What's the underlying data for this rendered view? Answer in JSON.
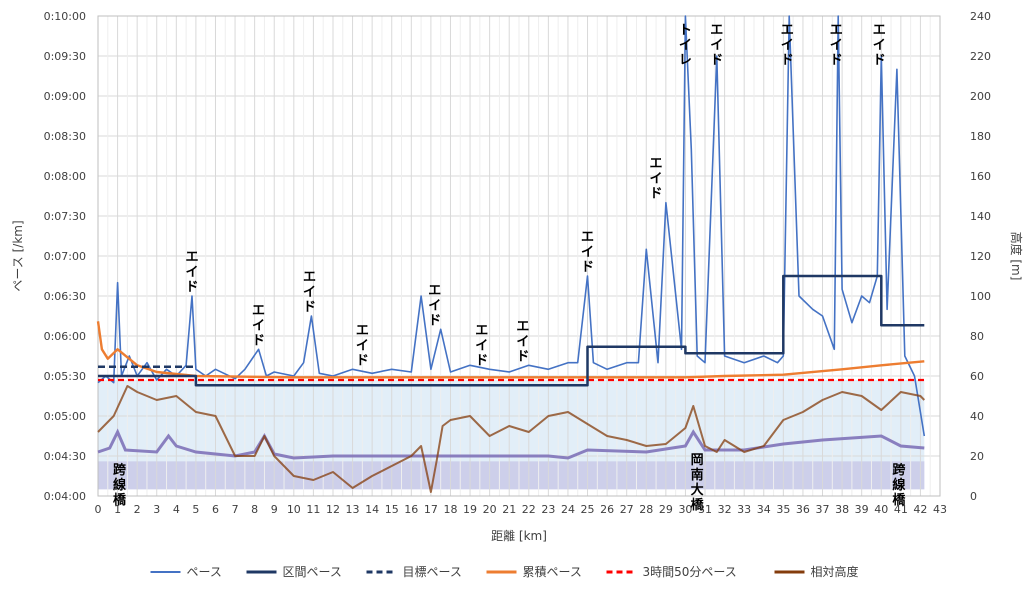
{
  "chart_data": {
    "type": "line",
    "xlabel": "距離 [km]",
    "ylabel_left": "ペース [/km]",
    "ylabel_right": "高度 [m]",
    "x_ticks": [
      0,
      1,
      2,
      3,
      4,
      5,
      6,
      7,
      8,
      9,
      10,
      11,
      12,
      13,
      14,
      15,
      16,
      17,
      18,
      19,
      20,
      21,
      22,
      23,
      24,
      25,
      26,
      27,
      28,
      29,
      30,
      31,
      32,
      33,
      34,
      35,
      36,
      37,
      38,
      39,
      40,
      41,
      42,
      43
    ],
    "y_left_ticks": [
      "0:04:00",
      "0:04:30",
      "0:05:00",
      "0:05:30",
      "0:06:00",
      "0:06:30",
      "0:07:00",
      "0:07:30",
      "0:08:00",
      "0:08:30",
      "0:09:00",
      "0:09:30",
      "0:10:00"
    ],
    "y_right_ticks": [
      0,
      20,
      40,
      60,
      80,
      100,
      120,
      140,
      160,
      180,
      200,
      220,
      240
    ],
    "xlim": [
      0,
      43
    ],
    "ylim_left_seconds": [
      240,
      600
    ],
    "ylim_right": [
      0,
      240
    ],
    "grid": true,
    "legend_position": "bottom",
    "colors": {
      "pace": "#4472C4",
      "section_pace": "#1F3864",
      "target_pace": "#1F3864",
      "cumulative_pace": "#ED7D31",
      "pace_350": "#FF0000",
      "relative_altitude": "#843C0C",
      "band_light": "#DDEBF7",
      "band_purple": "#C9C9E8",
      "altitude_purple": "#7F72B8"
    },
    "series": [
      {
        "name": "ペース",
        "x": [
          0,
          0.4,
          0.8,
          1.0,
          1.2,
          1.6,
          2.0,
          2.5,
          3.0,
          3.5,
          4.0,
          4.5,
          4.8,
          5.0,
          5.5,
          6.0,
          7.0,
          7.5,
          8.2,
          8.6,
          9.0,
          10.0,
          10.5,
          10.9,
          11.3,
          12.0,
          13.0,
          14.0,
          15.0,
          16.0,
          16.5,
          17.0,
          17.5,
          18.0,
          19.0,
          20.0,
          21.0,
          22.0,
          23.0,
          24.0,
          24.5,
          25.0,
          25.3,
          26.0,
          27.0,
          27.6,
          28.0,
          28.6,
          29.0,
          29.8,
          30.0,
          30.3,
          30.6,
          31.0,
          31.6,
          32.0,
          33.0,
          34.0,
          34.7,
          35.0,
          35.3,
          35.8,
          36.5,
          37.0,
          37.6,
          37.8,
          38.0,
          38.5,
          39.0,
          39.4,
          39.8,
          40.0,
          40.3,
          40.8,
          41.2,
          41.7,
          42.2
        ],
        "values": [
          325,
          330,
          325,
          400,
          330,
          345,
          330,
          340,
          327,
          335,
          330,
          338,
          390,
          335,
          330,
          335,
          328,
          335,
          350,
          330,
          333,
          330,
          340,
          375,
          332,
          330,
          335,
          332,
          335,
          333,
          390,
          335,
          365,
          333,
          338,
          335,
          333,
          338,
          335,
          340,
          340,
          405,
          340,
          335,
          340,
          340,
          425,
          340,
          460,
          350,
          600,
          500,
          345,
          340,
          570,
          345,
          340,
          345,
          340,
          345,
          600,
          390,
          380,
          375,
          350,
          600,
          395,
          370,
          390,
          385,
          405,
          570,
          380,
          560,
          345,
          330,
          285
        ]
      },
      {
        "name": "区間ペース",
        "x": [
          0,
          5.0,
          5.0,
          25.0,
          25.0,
          30.0,
          30.0,
          35.0,
          35.0,
          40.0,
          40.0,
          42.2
        ],
        "values": [
          330,
          330,
          323,
          323,
          352,
          352,
          347,
          347,
          405,
          405,
          368,
          368
        ]
      },
      {
        "name": "目標ペース",
        "x": [
          0,
          5.0
        ],
        "values": [
          337,
          337
        ]
      },
      {
        "name": "累積ペース",
        "x": [
          0,
          0.2,
          0.5,
          1.0,
          2.0,
          3.0,
          5.0,
          10.0,
          15.0,
          20.0,
          25.0,
          30.0,
          32.0,
          35.0,
          38.0,
          40.0,
          42.2
        ],
        "values": [
          371,
          350,
          343,
          350,
          338,
          333,
          330,
          329,
          329,
          329,
          329,
          329,
          330,
          331,
          335,
          338,
          341
        ]
      },
      {
        "name": "3時間50分ペース",
        "x": [
          0,
          42.2
        ],
        "values": [
          327,
          327
        ]
      },
      {
        "name": "相対高度",
        "x": [
          0,
          0.8,
          1.5,
          2.0,
          3.0,
          4.0,
          5.0,
          6.0,
          7.0,
          8.0,
          8.5,
          9.0,
          10.0,
          11.0,
          12.0,
          13.0,
          14.0,
          15.0,
          16.0,
          16.5,
          17.0,
          17.3,
          17.6,
          18.0,
          19.0,
          20.0,
          21.0,
          22.0,
          23.0,
          24.0,
          25.0,
          26.0,
          27.0,
          28.0,
          29.0,
          30.0,
          30.4,
          31.0,
          31.6,
          32.0,
          33.0,
          34.0,
          35.0,
          36.0,
          37.0,
          38.0,
          39.0,
          40.0,
          41.0,
          42.0,
          42.2
        ],
        "values": [
          32,
          40,
          55,
          52,
          48,
          50,
          42,
          40,
          20,
          20,
          30,
          20,
          10,
          8,
          12,
          4,
          10,
          15,
          20,
          25,
          2,
          18,
          35,
          38,
          40,
          30,
          35,
          32,
          40,
          42,
          36,
          30,
          28,
          25,
          26,
          34,
          45,
          25,
          22,
          28,
          22,
          25,
          38,
          42,
          48,
          52,
          50,
          43,
          52,
          50,
          48
        ]
      }
    ],
    "altitude_purple_line": {
      "x": [
        0,
        0.6,
        1.0,
        1.4,
        3.0,
        3.6,
        4.0,
        5.0,
        7.0,
        8.0,
        8.5,
        9.0,
        10.0,
        12.0,
        15.0,
        17.0,
        20.0,
        23.0,
        24.0,
        25.0,
        28.0,
        30.0,
        30.4,
        31.0,
        33.0,
        35.0,
        37.0,
        40.0,
        41.0,
        42.2
      ],
      "values": [
        22,
        24,
        32,
        23,
        22,
        30,
        25,
        22,
        20,
        22,
        30,
        21,
        19,
        20,
        20,
        20,
        20,
        20,
        19,
        23,
        22,
        25,
        32,
        23,
        23,
        26,
        28,
        30,
        25,
        24
      ]
    },
    "bands": [
      {
        "from_pace_seconds": 245,
        "to_pace_seconds": 327,
        "color": "light-blue"
      },
      {
        "from_pace_seconds": 245,
        "to_pace_seconds": 266,
        "color": "lavender"
      }
    ],
    "annotations": [
      {
        "text": "エイド",
        "x": 4.8
      },
      {
        "text": "エイド",
        "x": 8.2
      },
      {
        "text": "エイド",
        "x": 10.8
      },
      {
        "text": "エイド",
        "x": 13.5
      },
      {
        "text": "エイド",
        "x": 17.2
      },
      {
        "text": "エイド",
        "x": 19.6
      },
      {
        "text": "エイド",
        "x": 21.7
      },
      {
        "text": "エイド",
        "x": 25.0
      },
      {
        "text": "エイド",
        "x": 28.5
      },
      {
        "text": "トイレ",
        "x": 30.0
      },
      {
        "text": "エイド",
        "x": 31.6
      },
      {
        "text": "エイド",
        "x": 35.2
      },
      {
        "text": "エイド",
        "x": 37.7
      },
      {
        "text": "エイド",
        "x": 39.9
      },
      {
        "text": "跨線橋",
        "x": 1.1
      },
      {
        "text": "岡南大橋",
        "x": 30.6
      },
      {
        "text": "跨線橋",
        "x": 40.9
      },
      {
        "text": "岡南大橋",
        "x": 30.6
      }
    ],
    "legend": [
      "ペース",
      "区間ペース",
      "目標ペース",
      "累積ペース",
      "3時間50分ペース",
      "相対高度"
    ]
  }
}
